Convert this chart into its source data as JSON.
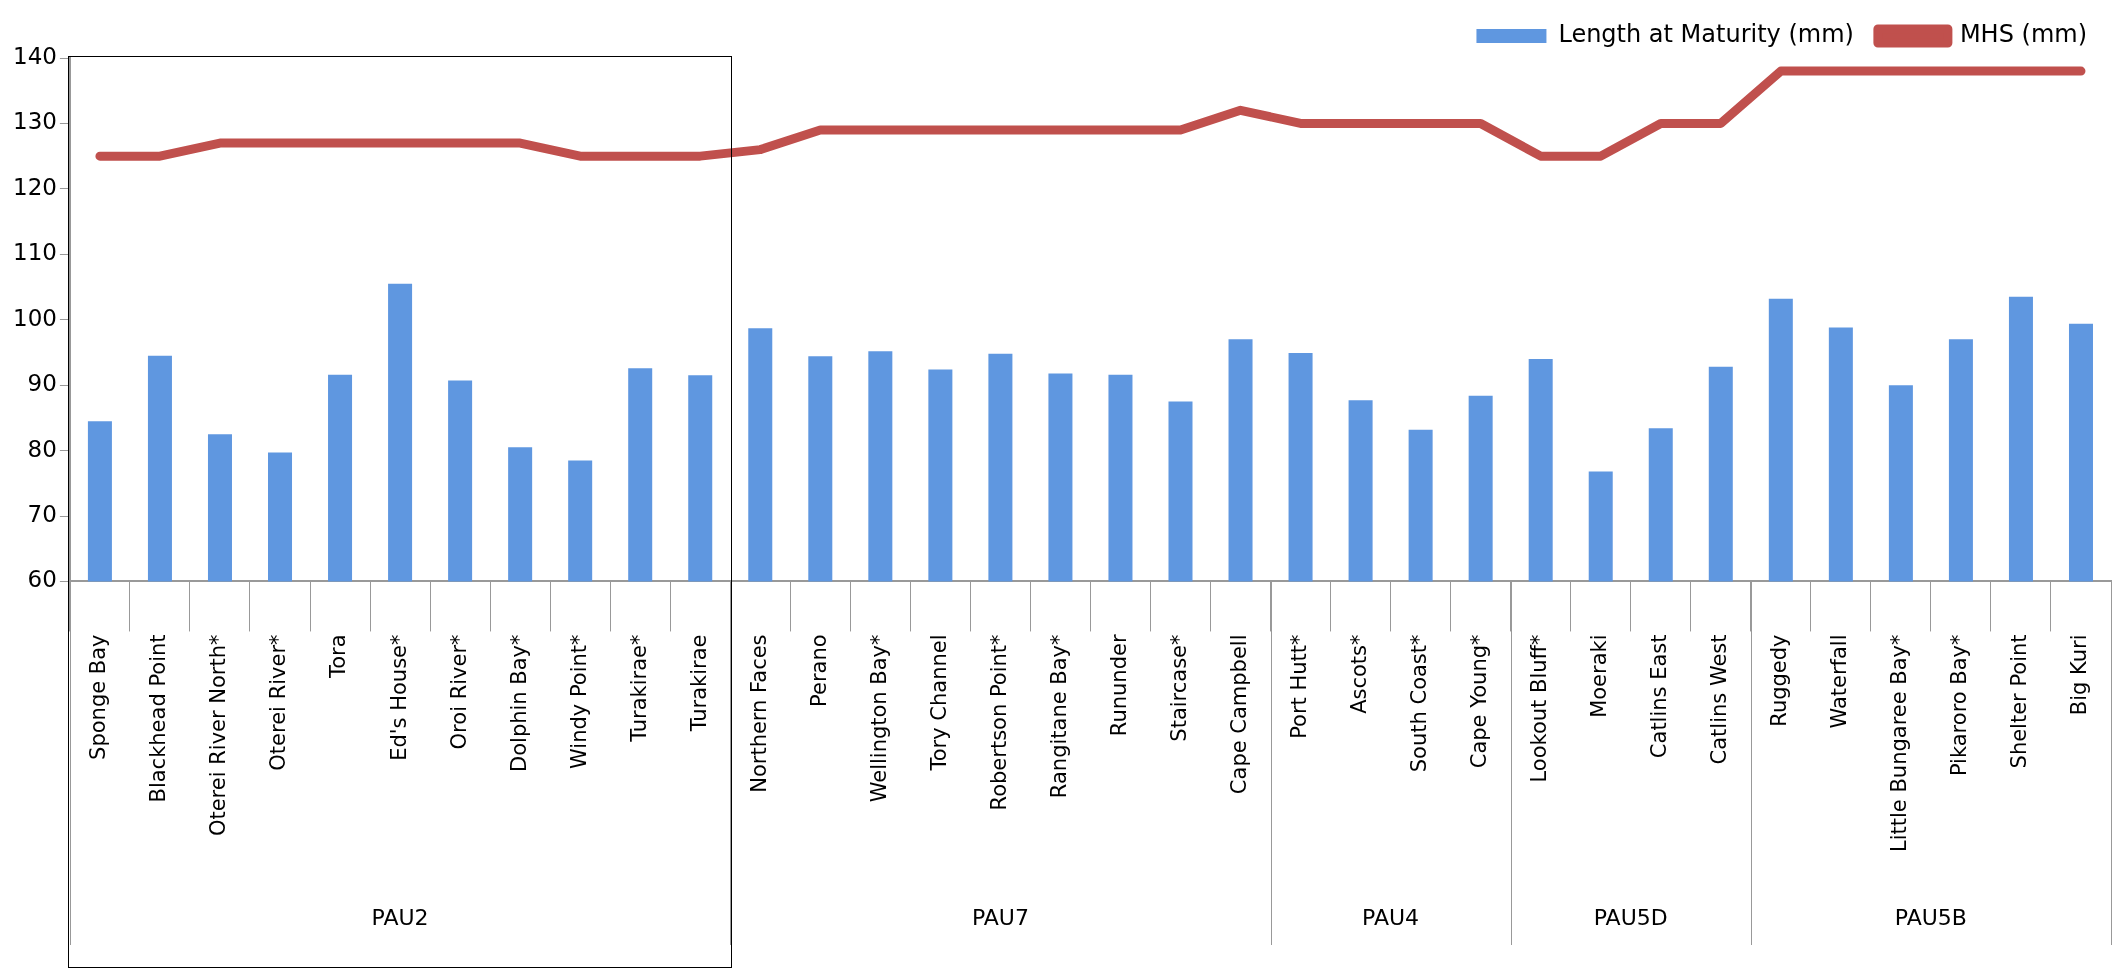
{
  "chart_data": {
    "type": "bar",
    "categories": [
      "Sponge Bay",
      "Blackhead Point",
      "Oterei River North*",
      "Oterei River*",
      "Tora",
      "Ed's House*",
      "Oroi River*",
      "Dolphin Bay*",
      "Windy Point*",
      "Turakirae*",
      "Turakirae",
      "Northern Faces",
      "Perano",
      "Wellington Bay*",
      "Tory Channel",
      "Robertson Point*",
      "Rangitane Bay*",
      "Rununder",
      "Staircase*",
      "Cape Campbell",
      "Port Hutt*",
      "Ascots*",
      "South Coast*",
      "Cape Young*",
      "Lookout Bluff*",
      "Moeraki",
      "Catlins East",
      "Catlins West",
      "Ruggedy",
      "Waterfall",
      "Little Bungaree Bay*",
      "Pikaroro Bay*",
      "Shelter Point",
      "Big Kuri"
    ],
    "series": [
      {
        "name": "Length at Maturity (mm)",
        "color": "#5f97e0",
        "values": [
          84.5,
          94.5,
          82.5,
          79.7,
          91.6,
          105.5,
          90.7,
          80.5,
          78.5,
          92.6,
          91.5,
          98.7,
          94.4,
          95.2,
          92.4,
          94.8,
          91.8,
          91.6,
          87.5,
          97.0,
          94.9,
          87.7,
          83.2,
          88.4,
          94.0,
          76.8,
          83.4,
          92.8,
          103.2,
          98.8,
          90.0,
          97.0,
          103.5,
          99.4
        ]
      },
      {
        "name": "MHS (mm)",
        "type": "line",
        "color": "#c0504d",
        "values": [
          125,
          125,
          127,
          127,
          127,
          127,
          127,
          127,
          125,
          125,
          125,
          126,
          129,
          129,
          129,
          129,
          129,
          129,
          129,
          132,
          130,
          130,
          130,
          130,
          125,
          125,
          130,
          130,
          138,
          138,
          138,
          138,
          138,
          138
        ]
      }
    ],
    "ylim": [
      60,
      140
    ],
    "yticks": [
      60,
      70,
      80,
      90,
      100,
      110,
      120,
      130,
      140
    ],
    "grid": false,
    "legend": "top right",
    "marker": "none",
    "line_style": "solid",
    "annotations": [
      "PAU2",
      "PAU7",
      "PAU4",
      "PAU5D",
      "PAU5B"
    ]
  }
}
